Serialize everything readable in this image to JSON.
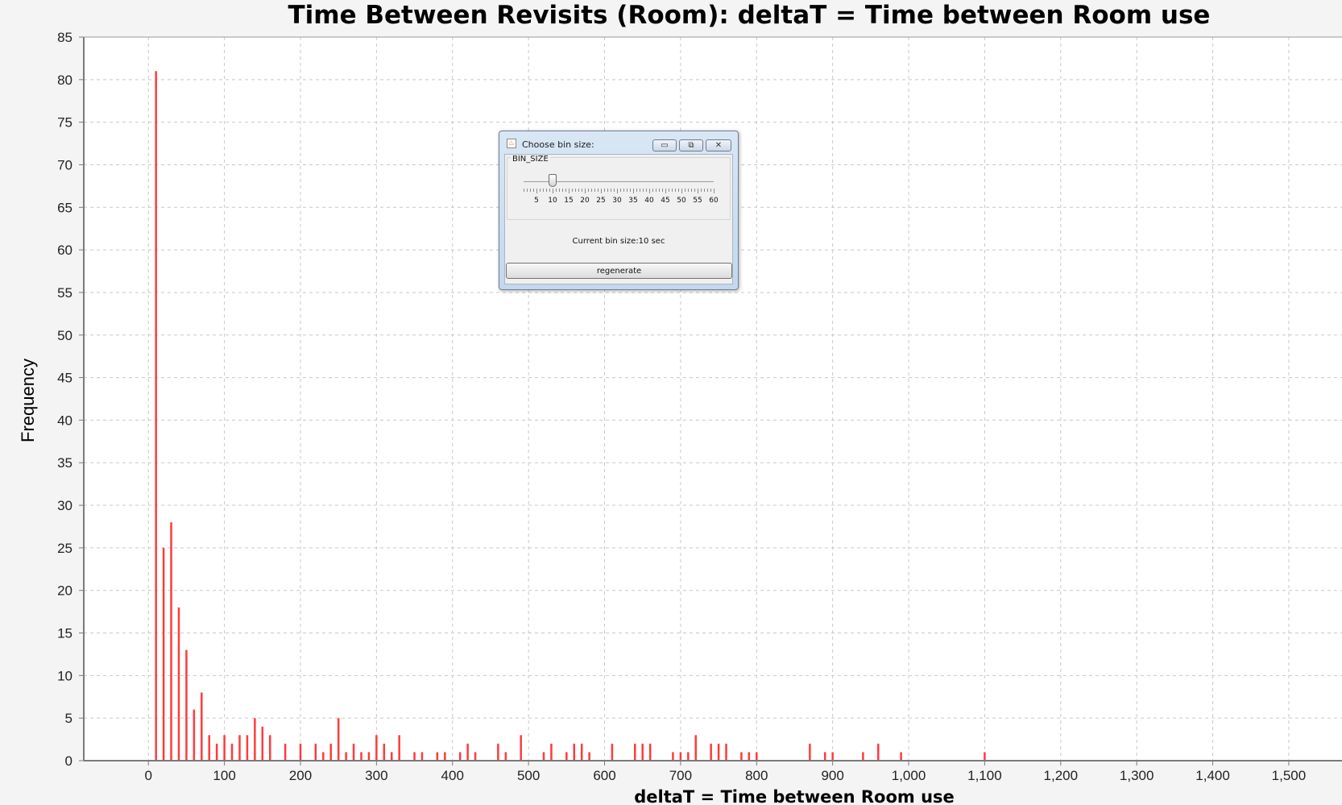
{
  "chart_data": {
    "type": "bar",
    "title": "Time Between Revisits (Room): deltaT = Time between Room use",
    "xlabel": "deltaT = Time between Room use",
    "ylabel": "Frequency",
    "xlim": [
      -85,
      1570
    ],
    "ylim": [
      0,
      85
    ],
    "x_ticks": [
      0,
      100,
      200,
      300,
      400,
      500,
      600,
      700,
      800,
      900,
      1000,
      1100,
      1200,
      1300,
      1400,
      1500
    ],
    "x_tick_labels": [
      "0",
      "100",
      "200",
      "300",
      "400",
      "500",
      "600",
      "700",
      "800",
      "900",
      "1,000",
      "1,100",
      "1,200",
      "1,300",
      "1,400",
      "1,500"
    ],
    "y_ticks": [
      0,
      5,
      10,
      15,
      20,
      25,
      30,
      35,
      40,
      45,
      50,
      55,
      60,
      65,
      70,
      75,
      80,
      85
    ],
    "grid": true,
    "color": "#ff3b3b",
    "x": [
      10,
      20,
      30,
      40,
      50,
      60,
      70,
      80,
      90,
      100,
      110,
      120,
      130,
      140,
      150,
      160,
      180,
      200,
      220,
      230,
      240,
      250,
      260,
      270,
      280,
      290,
      300,
      310,
      320,
      330,
      350,
      360,
      380,
      390,
      410,
      420,
      430,
      460,
      470,
      490,
      520,
      530,
      550,
      560,
      570,
      580,
      610,
      640,
      650,
      660,
      690,
      700,
      710,
      720,
      740,
      750,
      760,
      780,
      790,
      800,
      870,
      890,
      900,
      940,
      960,
      990,
      1100
    ],
    "values": [
      81,
      25,
      28,
      18,
      13,
      6,
      8,
      3,
      2,
      3,
      2,
      3,
      3,
      5,
      4,
      3,
      2,
      2,
      2,
      1,
      2,
      5,
      1,
      2,
      1,
      1,
      3,
      2,
      1,
      3,
      1,
      1,
      1,
      1,
      1,
      2,
      1,
      2,
      1,
      3,
      1,
      2,
      1,
      2,
      2,
      1,
      2,
      2,
      2,
      2,
      1,
      1,
      1,
      3,
      2,
      2,
      2,
      1,
      1,
      1,
      2,
      1,
      1,
      1,
      2,
      1,
      1
    ]
  },
  "dialog": {
    "title": "Choose bin size:",
    "minimize_icon": "▭",
    "maximize_icon": "⧉",
    "close_icon": "✕",
    "slider": {
      "label": "BIN_SIZE",
      "min": 1,
      "max": 60,
      "value": 10,
      "tick_labels": [
        "5",
        "10",
        "15",
        "20",
        "25",
        "30",
        "35",
        "40",
        "45",
        "50",
        "55",
        "60"
      ]
    },
    "status": "Current bin size:10 sec",
    "regenerate_label": "regenerate"
  }
}
